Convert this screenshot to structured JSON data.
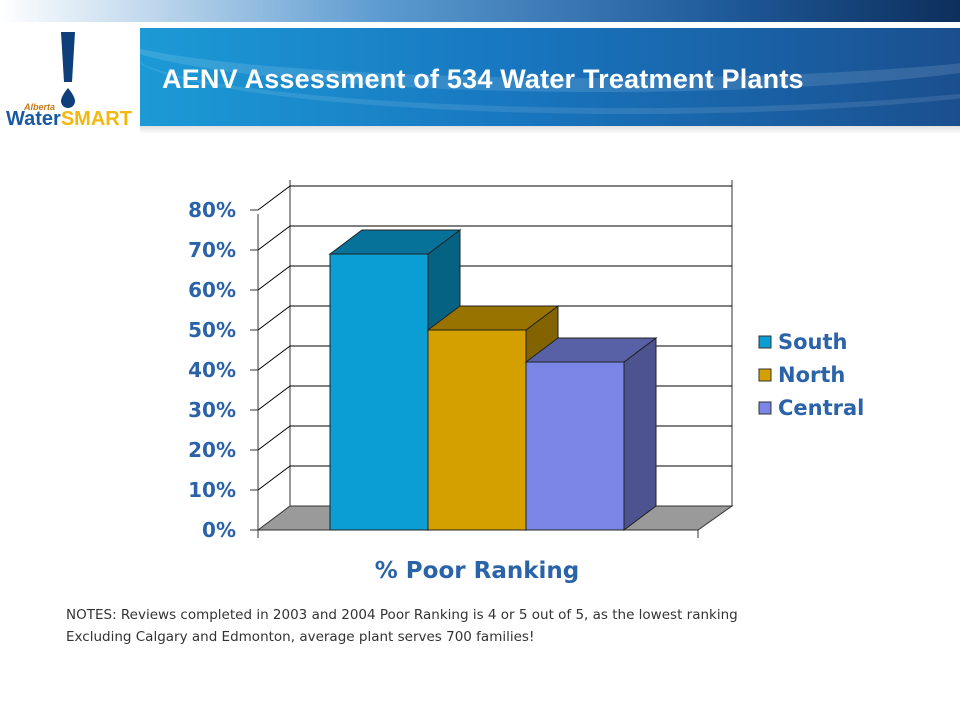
{
  "header": {
    "title": "AENV Assessment of 534 Water Treatment Plants",
    "logo": {
      "top_text": "Alberta",
      "brand_part1": "Water",
      "brand_part2": "SMART"
    }
  },
  "chart_data": {
    "type": "bar",
    "subtype": "3d-clustered",
    "categories": [
      "% Poor Ranking"
    ],
    "series": [
      {
        "name": "South",
        "values": [
          69
        ],
        "color": "#0a9ed4"
      },
      {
        "name": "North",
        "values": [
          50
        ],
        "color": "#d4a000"
      },
      {
        "name": "Central",
        "values": [
          42
        ],
        "color": "#7a86e6"
      }
    ],
    "xlabel": "% Poor Ranking",
    "ylabel": "",
    "ylim": [
      0,
      80
    ],
    "yticks": [
      "0%",
      "10%",
      "20%",
      "30%",
      "40%",
      "50%",
      "60%",
      "70%",
      "80%"
    ],
    "grid": true,
    "legend": "right"
  },
  "notes": {
    "line1": "NOTES:  Reviews completed in 2003 and 2004  Poor Ranking is 4 or 5 out of 5, as the lowest ranking",
    "line2": "Excluding Calgary and Edmonton, average plant serves 700 families!"
  },
  "colors": {
    "text_blue": "#2b63a8",
    "floor": "#9a9a9a"
  }
}
